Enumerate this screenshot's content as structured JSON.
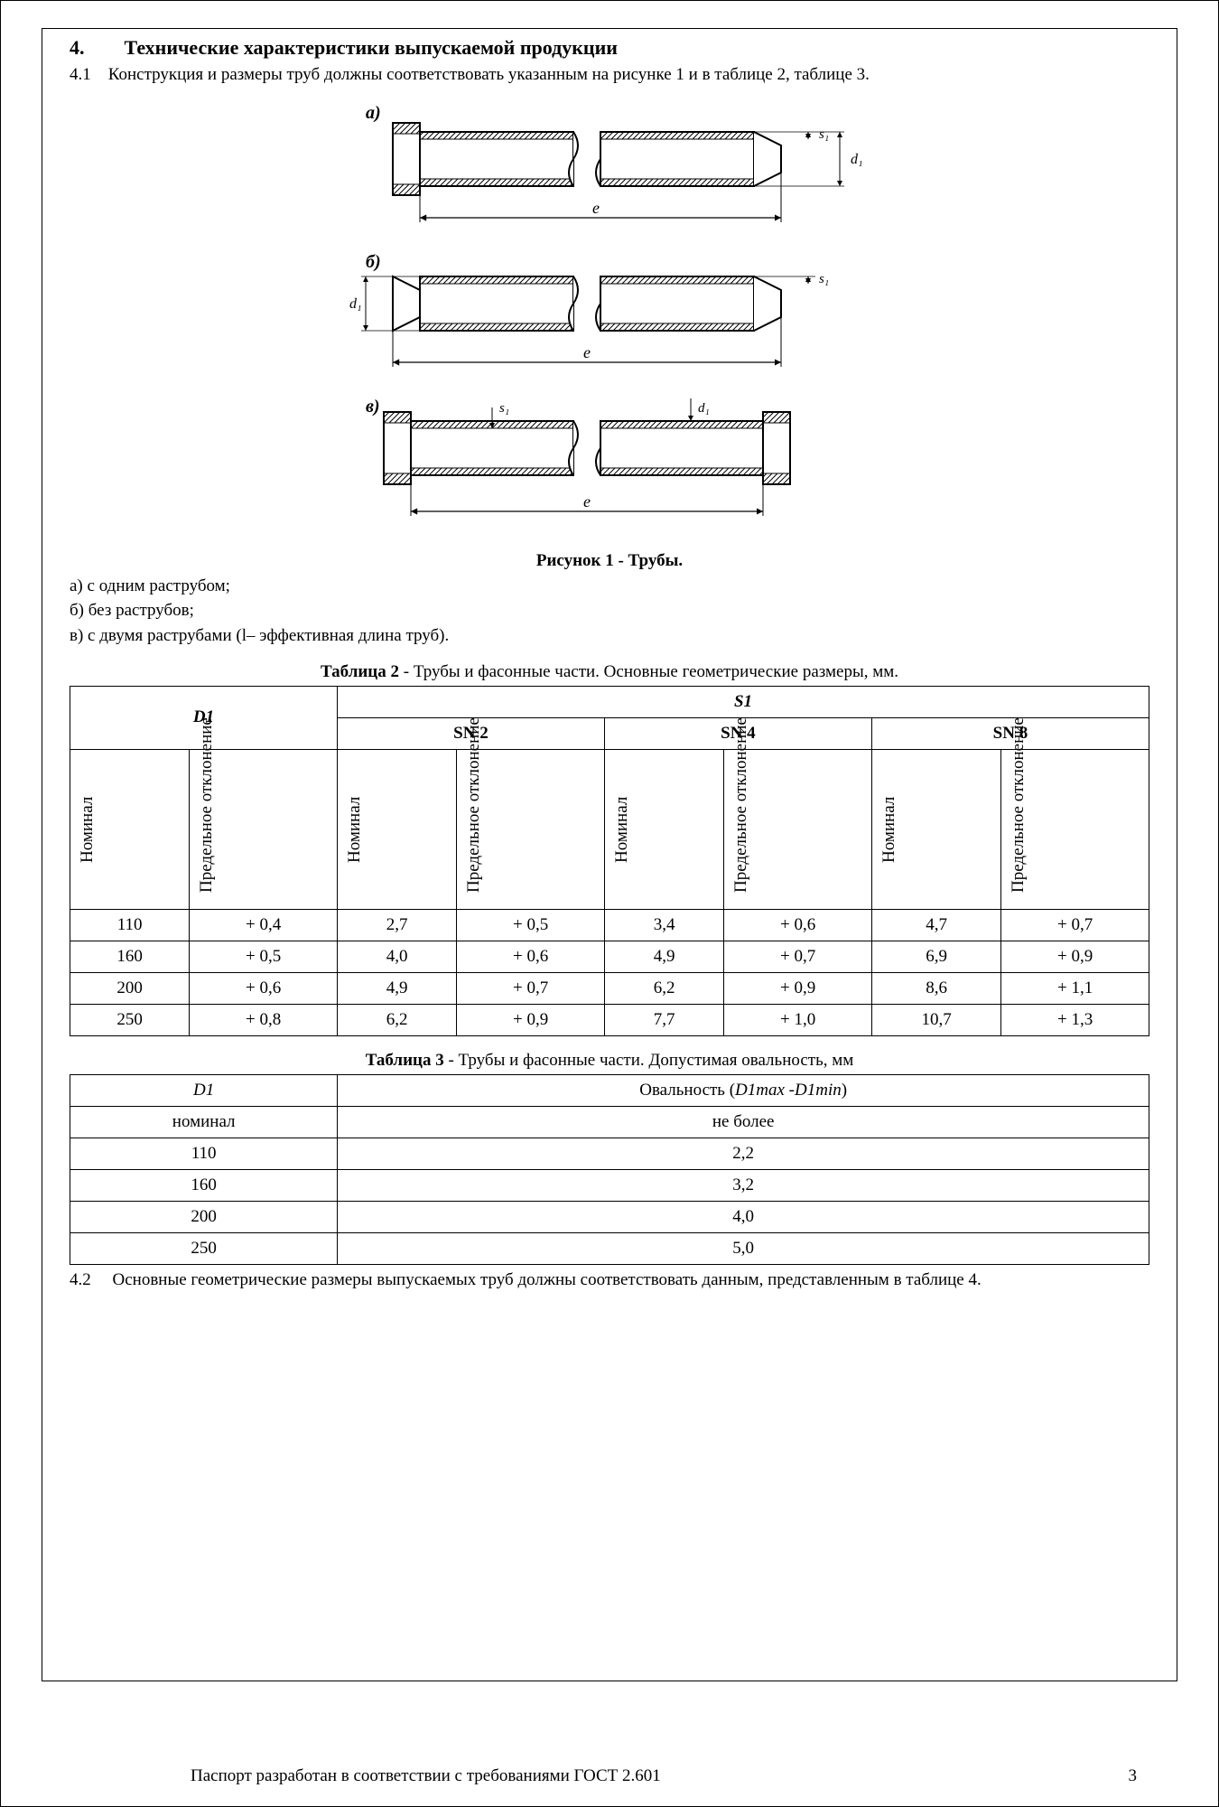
{
  "section": {
    "number": "4.",
    "title": "Технические характеристики выпускаемой продукции",
    "p41_num": "4.1",
    "p41_text": "Конструкция и размеры труб должны соответствовать указанным на рисунке 1 и в таблице 2, таблице 3.",
    "p42_num": "4.2",
    "p42_text": "Основные геометрические размеры выпускаемых труб должны соответствовать данным, представленным в таблице 4."
  },
  "figure": {
    "labels": {
      "a": "а)",
      "b": "б)",
      "v": "в)"
    },
    "dims": {
      "e": "е",
      "s1": "s₁",
      "d1": "d₁"
    },
    "caption": "Рисунок 1 - Трубы.",
    "legend_a": "а) с одним раструбом;",
    "legend_b": "б) без раструбов;",
    "legend_v": "в) с двумя раструбами (l– эффективная длина труб)."
  },
  "table2": {
    "caption_bold": "Таблица 2",
    "caption_rest": " - Трубы и фасонные части. Основные геометрические размеры, мм.",
    "headers": {
      "D1": "D1",
      "S1": "S1",
      "SN2": "SN 2",
      "SN4": "SN 4",
      "SN8": "SN 8",
      "nominal": "Номинал",
      "deviation": "Предельное отклонение"
    },
    "rows": [
      [
        "110",
        "+ 0,4",
        "2,7",
        "+ 0,5",
        "3,4",
        "+ 0,6",
        "4,7",
        "+ 0,7"
      ],
      [
        "160",
        "+ 0,5",
        "4,0",
        "+ 0,6",
        "4,9",
        "+ 0,7",
        "6,9",
        "+ 0,9"
      ],
      [
        "200",
        "+ 0,6",
        "4,9",
        "+ 0,7",
        "6,2",
        "+ 0,9",
        "8,6",
        "+ 1,1"
      ],
      [
        "250",
        "+ 0,8",
        "6,2",
        "+ 0,9",
        "7,7",
        "+ 1,0",
        "10,7",
        "+ 1,3"
      ]
    ]
  },
  "table3": {
    "caption_bold": "Таблица 3",
    "caption_rest": " - Трубы и фасонные части. Допустимая овальность, мм",
    "headers": {
      "D1": "D1",
      "ovality_prefix": "Овальность (",
      "ovality_italic": "D1max -D1min",
      "ovality_suffix": ")",
      "nominal": "номинал",
      "not_more": "не более"
    },
    "rows": [
      [
        "110",
        "2,2"
      ],
      [
        "160",
        "3,2"
      ],
      [
        "200",
        "4,0"
      ],
      [
        "250",
        "5,0"
      ]
    ]
  },
  "footer": {
    "text": "Паспорт разработан в соответствии с требованиями ГОСТ 2.601",
    "page": "3"
  },
  "styling": {
    "stroke": "#000000",
    "hatch_fill": "#ffffff",
    "line_width": 1.5
  }
}
